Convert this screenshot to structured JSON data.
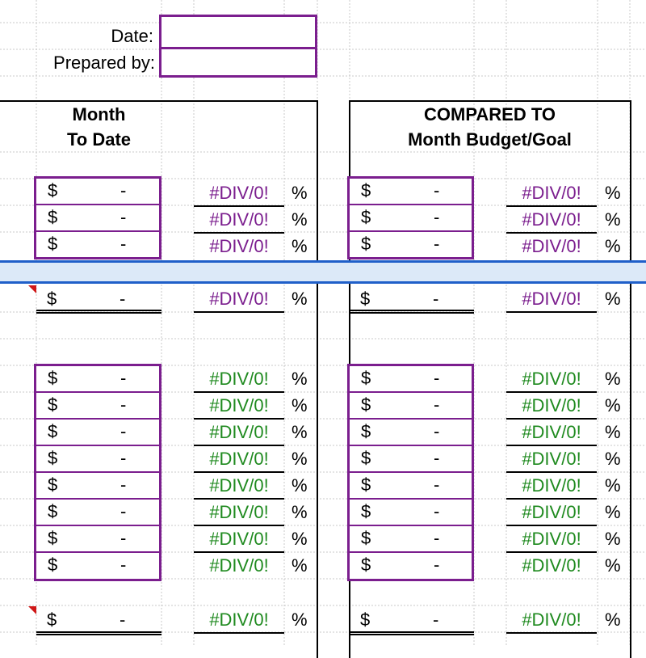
{
  "header": {
    "date_label": "Date:",
    "prepared_by_label": "Prepared by:",
    "date_value": "",
    "prepared_by_value": ""
  },
  "columns": {
    "left_header_line1": "Month",
    "left_header_line2": "To Date",
    "right_header_line1": "COMPARED TO",
    "right_header_line2": "Month Budget/Goal"
  },
  "cell": {
    "currency": "$",
    "zero": "-",
    "error": "#DIV/0!",
    "percent": "%"
  },
  "colors": {
    "input_border": "#7b1e8e",
    "error_group1": "#7b1e8e",
    "error_group2": "#1f8a1f",
    "selected_row": "#dce9f8",
    "selected_row_border": "#1f5fc9",
    "comment_marker": "#d01818"
  }
}
